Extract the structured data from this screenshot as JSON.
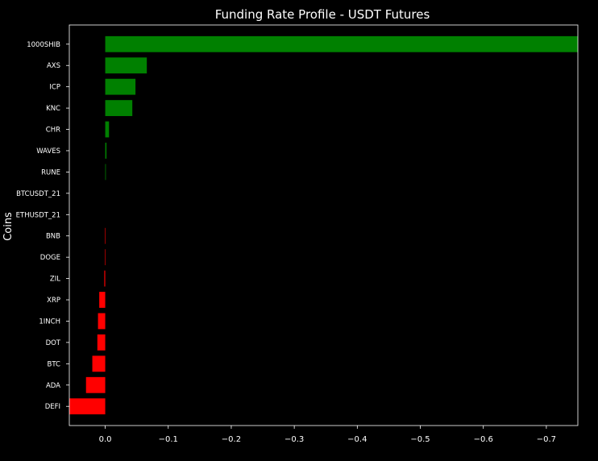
{
  "chart_data": {
    "type": "bar",
    "orientation": "horizontal",
    "title": "Funding Rate Profile - USDT Futures",
    "xlabel": "",
    "ylabel": "Coins",
    "xlim": [
      0.057,
      -0.75
    ],
    "x_inverted": true,
    "x_ticks": [
      0.0,
      -0.1,
      -0.2,
      -0.3,
      -0.4,
      -0.5,
      -0.6,
      -0.7
    ],
    "x_tick_labels": [
      "0.0",
      "−0.1",
      "−0.2",
      "−0.3",
      "−0.4",
      "−0.5",
      "−0.6",
      "−0.7"
    ],
    "categories": [
      "1000SHIB",
      "AXS",
      "ICP",
      "KNC",
      "CHR",
      "WAVES",
      "RUNE",
      "BTCUSDT_21",
      "ETHUSDT_21",
      "BNB",
      "DOGE",
      "ZIL",
      "XRP",
      "1INCH",
      "DOT",
      "BTC",
      "ADA",
      "DEFI"
    ],
    "values": [
      -0.75,
      -0.066,
      -0.048,
      -0.043,
      -0.006,
      -0.002,
      -0.001,
      0.0,
      0.0,
      0.0005,
      0.0005,
      0.0015,
      0.0095,
      0.0115,
      0.0125,
      0.0205,
      0.0305,
      0.057
    ],
    "colors": {
      "negative_rate": "#008000",
      "positive_rate": "#ff0000"
    },
    "background": "#000000",
    "text_color": "#ffffff",
    "grid": false,
    "legend": "none"
  }
}
